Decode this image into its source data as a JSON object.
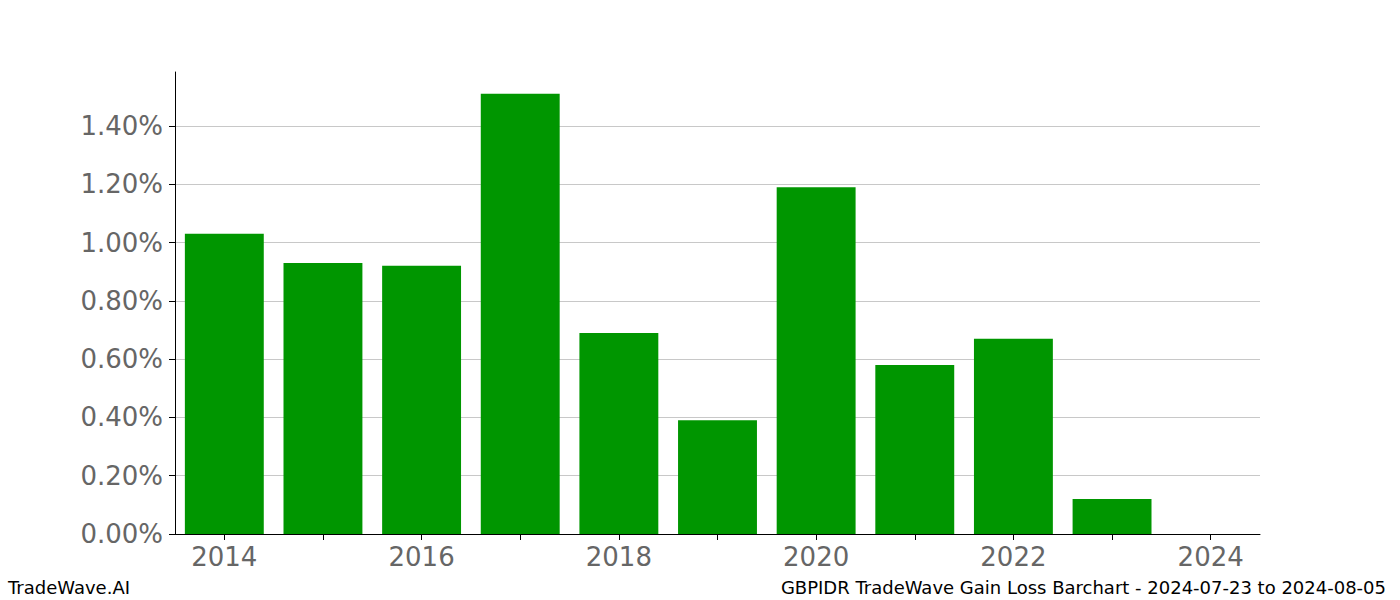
{
  "chart_data": {
    "type": "bar",
    "title": "GBPIDR TradeWave Gain Loss Barchart - 2024-07-23 to 2024-08-05",
    "annotations": [
      "TradeWave.AI"
    ],
    "categories": [
      "2014",
      null,
      "2016",
      null,
      "2018",
      null,
      "2020",
      null,
      "2022",
      null,
      "2024"
    ],
    "values": [
      1.03,
      0.93,
      0.92,
      1.51,
      0.69,
      0.39,
      1.19,
      0.58,
      0.67,
      0.12,
      0
    ],
    "color": "#009600",
    "ylim": [
      0,
      1.585
    ],
    "yticks": [
      {
        "value": 0,
        "label": "0.00%"
      },
      {
        "value": 0.2,
        "label": "0.20%"
      },
      {
        "value": 0.4,
        "label": "0.40%"
      },
      {
        "value": 0.6,
        "label": "0.60%"
      },
      {
        "value": 0.8,
        "label": "0.80%"
      },
      {
        "value": 1.0,
        "label": "1.00%"
      },
      {
        "value": 1.2,
        "label": "1.20%"
      },
      {
        "value": 1.4,
        "label": "1.40%"
      }
    ],
    "grid": true
  }
}
